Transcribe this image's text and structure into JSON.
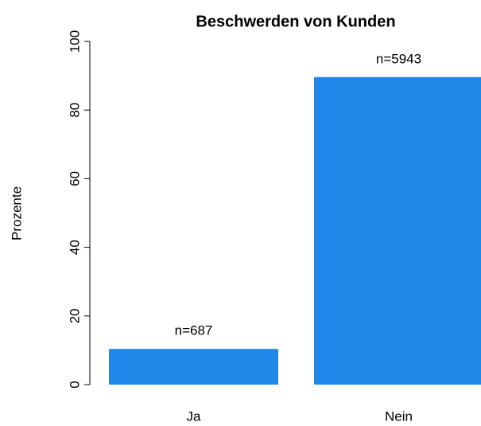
{
  "chart_data": {
    "type": "bar",
    "title": "Beschwerden von Kunden",
    "y_label": "Prozente",
    "categories": [
      "Ja",
      "Nein"
    ],
    "values": [
      10.4,
      89.6
    ],
    "bar_labels": [
      "n=687",
      "n=5943"
    ],
    "color": "#1f87e8",
    "ylim": [
      0,
      100
    ],
    "yticks": [
      0,
      20,
      40,
      60,
      80,
      100
    ],
    "grid": false
  }
}
